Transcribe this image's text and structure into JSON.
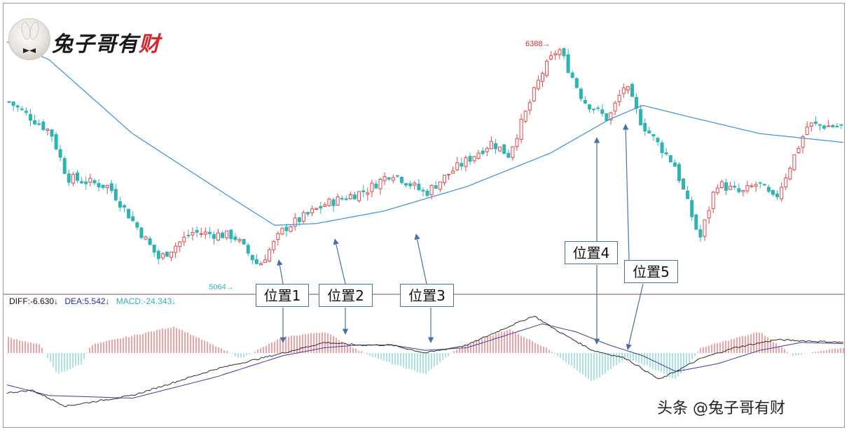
{
  "brand": {
    "logo_name": "rabbit-logo",
    "title_main": "兔子哥有",
    "title_last": "财"
  },
  "colors": {
    "up": "#e0464b",
    "down": "#2cb5b2",
    "ma_line": "#3c8fd6",
    "diff_line": "#2b2b2b",
    "dea_line": "#3a3aa8",
    "macd_pos": "#e0464b",
    "macd_neg": "#58c6c4",
    "divider": "#7a4a6a",
    "arrow": "#4a6fa8"
  },
  "price_labels": {
    "high": "6388",
    "low": "5064"
  },
  "indicator_legend": {
    "diff": "DIFF:-6.630↓",
    "dea": "DEA:5.542↓",
    "macd": "MACD:-24.343↓",
    "diff_color": "#111111",
    "dea_color": "#1f2fa8",
    "macd_color": "#2cb5b2"
  },
  "callouts": [
    {
      "label": "位置1"
    },
    {
      "label": "位置2"
    },
    {
      "label": "位置3"
    },
    {
      "label": "位置4"
    },
    {
      "label": "位置5"
    }
  ],
  "watermark": "头条 @兔子哥有财",
  "chart_data": {
    "type": "candlestick",
    "price_range": [
      5064,
      6388
    ],
    "high_label": "6388",
    "low_label": "5064",
    "ma_line_anchors": [
      [
        0.0,
        6420
      ],
      [
        0.05,
        6320
      ],
      [
        0.15,
        5900
      ],
      [
        0.27,
        5530
      ],
      [
        0.32,
        5380
      ],
      [
        0.37,
        5390
      ],
      [
        0.45,
        5460
      ],
      [
        0.55,
        5600
      ],
      [
        0.65,
        5790
      ],
      [
        0.72,
        5980
      ],
      [
        0.76,
        6060
      ],
      [
        0.82,
        5990
      ],
      [
        0.9,
        5900
      ],
      [
        1.0,
        5850
      ]
    ],
    "price_anchors": [
      [
        0.0,
        6080
      ],
      [
        0.05,
        5910
      ],
      [
        0.07,
        5650
      ],
      [
        0.12,
        5600
      ],
      [
        0.18,
        5190
      ],
      [
        0.22,
        5340
      ],
      [
        0.27,
        5320
      ],
      [
        0.3,
        5150
      ],
      [
        0.33,
        5360
      ],
      [
        0.38,
        5500
      ],
      [
        0.43,
        5580
      ],
      [
        0.46,
        5680
      ],
      [
        0.5,
        5560
      ],
      [
        0.53,
        5680
      ],
      [
        0.58,
        5850
      ],
      [
        0.6,
        5780
      ],
      [
        0.64,
        6240
      ],
      [
        0.66,
        6388
      ],
      [
        0.69,
        6090
      ],
      [
        0.72,
        5980
      ],
      [
        0.74,
        6180
      ],
      [
        0.76,
        5960
      ],
      [
        0.8,
        5720
      ],
      [
        0.83,
        5300
      ],
      [
        0.85,
        5620
      ],
      [
        0.88,
        5560
      ],
      [
        0.9,
        5620
      ],
      [
        0.92,
        5520
      ],
      [
        0.96,
        5950
      ],
      [
        1.0,
        5940
      ]
    ],
    "macd": {
      "legend": "DIFF:-6.630↓  DEA:5.542↓  MACD:-24.343↓",
      "hist_anchors": [
        [
          0.0,
          0.6
        ],
        [
          0.04,
          0.3
        ],
        [
          0.06,
          -0.8
        ],
        [
          0.09,
          -0.4
        ],
        [
          0.1,
          0.3
        ],
        [
          0.2,
          1.0
        ],
        [
          0.24,
          0.4
        ],
        [
          0.28,
          -0.2
        ],
        [
          0.33,
          0.6
        ],
        [
          0.38,
          0.8
        ],
        [
          0.42,
          0.1
        ],
        [
          0.45,
          -0.3
        ],
        [
          0.5,
          -0.8
        ],
        [
          0.54,
          0.2
        ],
        [
          0.6,
          0.9
        ],
        [
          0.65,
          0.1
        ],
        [
          0.7,
          -1.1
        ],
        [
          0.74,
          -0.2
        ],
        [
          0.76,
          -0.4
        ],
        [
          0.8,
          -1.0
        ],
        [
          0.83,
          0.2
        ],
        [
          0.9,
          0.8
        ],
        [
          0.94,
          -0.1
        ],
        [
          1.0,
          0.2
        ]
      ],
      "diff_anchors": [
        [
          0.0,
          -1.5
        ],
        [
          0.03,
          -1.4
        ],
        [
          0.07,
          -2.0
        ],
        [
          0.15,
          -1.6
        ],
        [
          0.25,
          -0.6
        ],
        [
          0.33,
          0.0
        ],
        [
          0.38,
          0.4
        ],
        [
          0.42,
          0.3
        ],
        [
          0.46,
          0.3
        ],
        [
          0.5,
          0.0
        ],
        [
          0.55,
          0.3
        ],
        [
          0.6,
          1.0
        ],
        [
          0.63,
          1.4
        ],
        [
          0.66,
          0.8
        ],
        [
          0.7,
          0.1
        ],
        [
          0.74,
          -0.2
        ],
        [
          0.78,
          -1.0
        ],
        [
          0.83,
          -0.2
        ],
        [
          0.87,
          0.2
        ],
        [
          0.92,
          0.5
        ],
        [
          1.0,
          0.4
        ]
      ],
      "dea_anchors": [
        [
          0.0,
          -1.2
        ],
        [
          0.05,
          -1.6
        ],
        [
          0.15,
          -1.7
        ],
        [
          0.25,
          -0.9
        ],
        [
          0.33,
          -0.1
        ],
        [
          0.38,
          0.2
        ],
        [
          0.42,
          0.3
        ],
        [
          0.46,
          0.3
        ],
        [
          0.5,
          0.1
        ],
        [
          0.55,
          0.2
        ],
        [
          0.6,
          0.7
        ],
        [
          0.64,
          1.1
        ],
        [
          0.68,
          0.8
        ],
        [
          0.72,
          0.3
        ],
        [
          0.76,
          -0.1
        ],
        [
          0.8,
          -0.7
        ],
        [
          0.85,
          -0.4
        ],
        [
          0.9,
          0.1
        ],
        [
          0.95,
          0.4
        ],
        [
          1.0,
          0.35
        ]
      ]
    }
  }
}
